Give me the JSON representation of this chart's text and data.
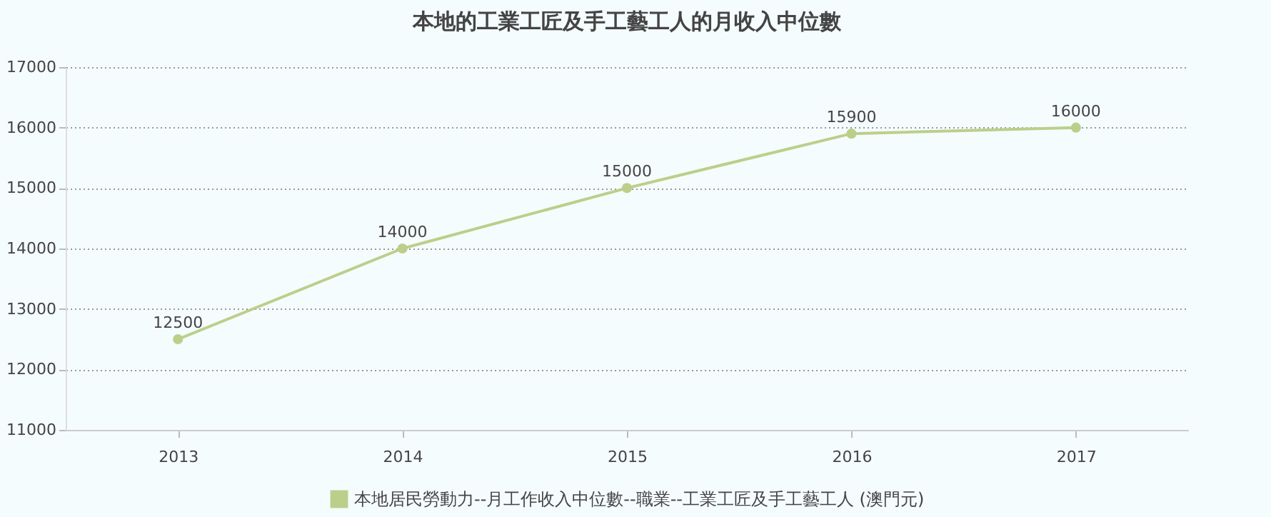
{
  "chart_data": {
    "type": "line",
    "title": "本地的工業工匠及手工藝工人的月收入中位數",
    "categories": [
      "2013",
      "2014",
      "2015",
      "2016",
      "2017"
    ],
    "series": [
      {
        "name": "本地居民勞動力--月工作收入中位數--職業--工業工匠及手工藝工人 (澳門元)",
        "color": "#bccf8a",
        "values": [
          12500,
          14000,
          15000,
          15900,
          16000
        ]
      }
    ],
    "ylim": [
      11000,
      17000
    ],
    "yticks": [
      11000,
      12000,
      13000,
      14000,
      15000,
      16000,
      17000
    ],
    "grid": "y",
    "legend": "bottom",
    "marker": "circle",
    "data_labels": true
  }
}
